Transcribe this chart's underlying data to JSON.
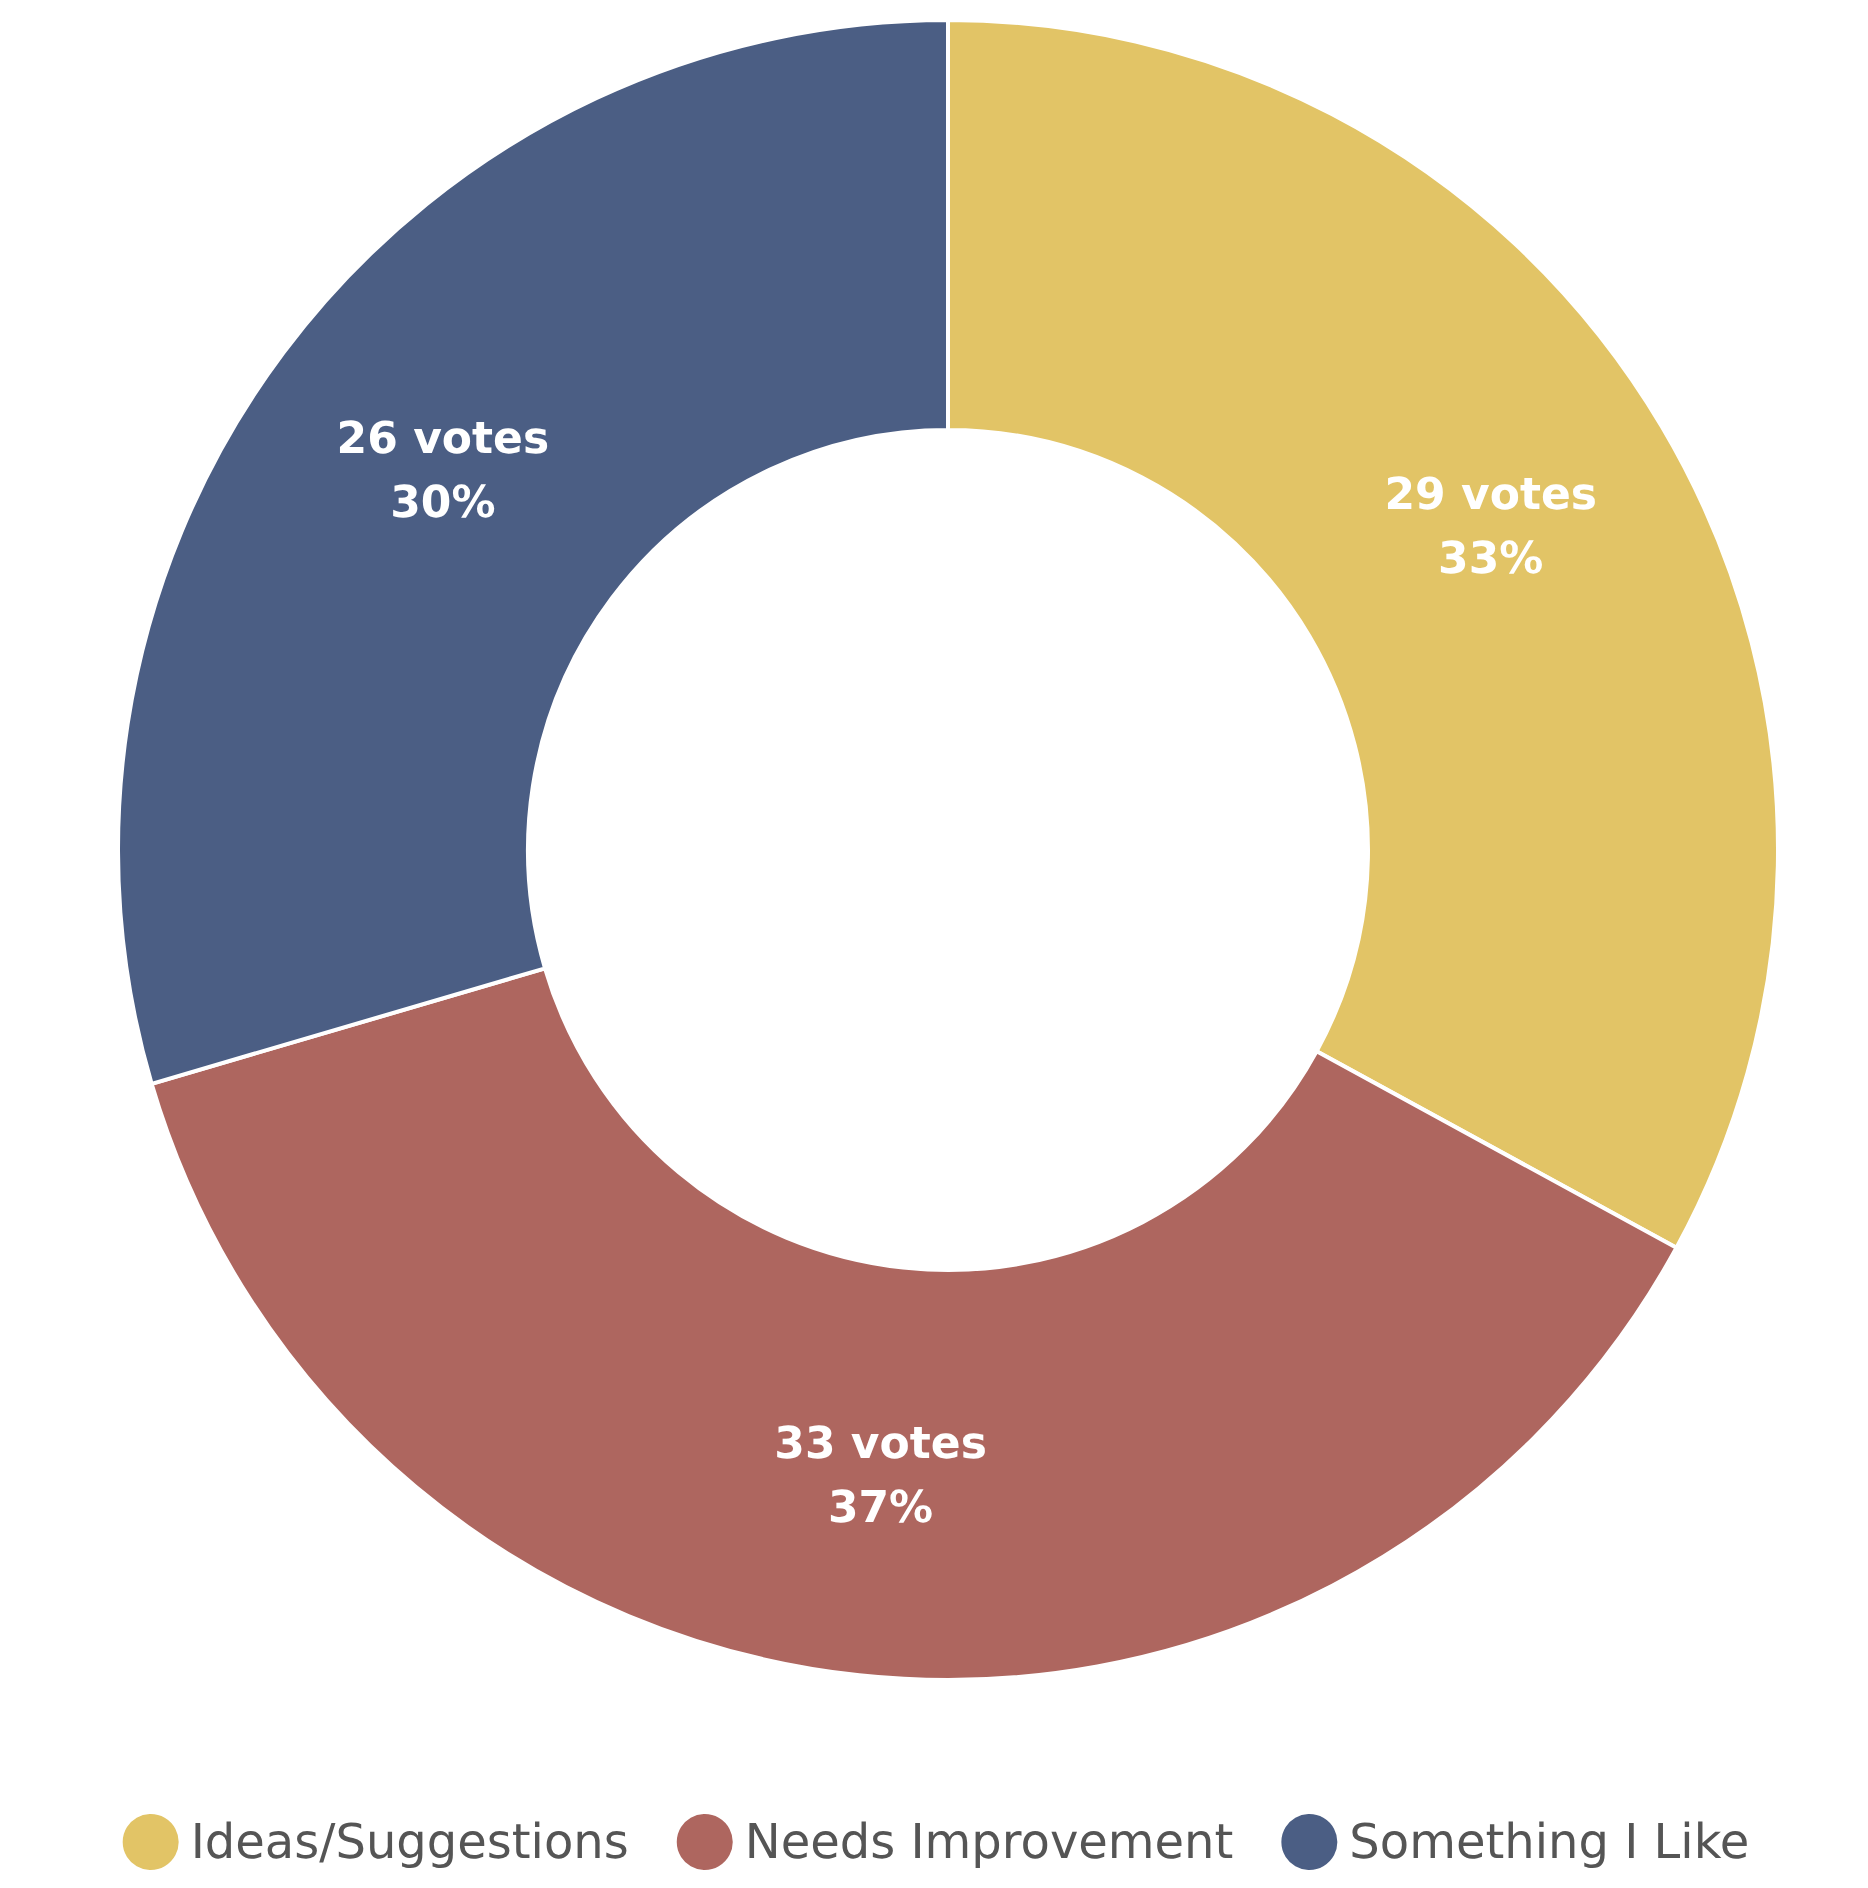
{
  "chart_data": {
    "type": "donut",
    "categories": [
      "Ideas/Suggestions",
      "Needs Improvement",
      "Something I Like"
    ],
    "values": [
      29,
      33,
      26
    ],
    "colors": [
      "#e2c466",
      "#ae665f",
      "#4b5e84"
    ],
    "value_labels": [
      "29 votes\n33%",
      "33 votes\n37%",
      "26 votes\n30%"
    ],
    "legend": "bottom"
  }
}
